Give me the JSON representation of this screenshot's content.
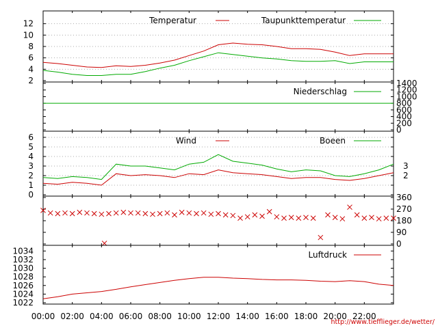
{
  "source_url": "http://www.tiefflieger.de/wetter/",
  "time_axis": {
    "ticks": [
      "00:00",
      "02:00",
      "04:00",
      "06:00",
      "08:00",
      "10:00",
      "12:00",
      "14:00",
      "16:00",
      "18:00",
      "20:00",
      "22:00"
    ],
    "range_hours": [
      0,
      24
    ]
  },
  "colors": {
    "red": "#cc0000",
    "green": "#00aa00",
    "link": "#cc0000"
  },
  "chart_data": [
    {
      "type": "line",
      "panel": "temperature",
      "ylim": [
        2,
        14
      ],
      "y_ticks": [
        "2",
        "4",
        "6",
        "8",
        "10",
        "12"
      ],
      "grid": true,
      "legend_position": "top-right",
      "x": [
        0,
        1,
        2,
        3,
        4,
        5,
        6,
        7,
        8,
        9,
        10,
        11,
        12,
        13,
        14,
        15,
        16,
        17,
        18,
        19,
        20,
        21,
        22,
        23,
        24
      ],
      "series": [
        {
          "name": "Temperatur",
          "color": "red",
          "values": [
            5.2,
            5.0,
            4.7,
            4.4,
            4.3,
            4.6,
            4.5,
            4.7,
            5.1,
            5.6,
            6.4,
            7.2,
            8.3,
            8.6,
            8.4,
            8.3,
            8.0,
            7.6,
            7.6,
            7.5,
            7.0,
            6.4,
            6.7,
            6.7,
            6.7
          ]
        },
        {
          "name": "Taupunkttemperatur",
          "color": "green",
          "values": [
            3.8,
            3.5,
            3.1,
            2.9,
            2.9,
            3.1,
            3.1,
            3.6,
            4.2,
            4.7,
            5.5,
            6.2,
            6.9,
            6.6,
            6.3,
            6.0,
            5.8,
            5.5,
            5.4,
            5.4,
            5.5,
            5.0,
            5.3,
            5.3,
            5.3
          ]
        }
      ]
    },
    {
      "type": "line",
      "panel": "precipitation",
      "ylim": [
        0,
        1400
      ],
      "y_ticks": [
        "0",
        "200",
        "400",
        "600",
        "800",
        "1000",
        "1200",
        "1400"
      ],
      "legend_position": "top-right",
      "x": [
        0,
        24
      ],
      "series": [
        {
          "name": "Niederschlag",
          "color": "green",
          "values": [
            800,
            800
          ]
        }
      ]
    },
    {
      "type": "line",
      "panel": "wind",
      "ylim": [
        0,
        6.5
      ],
      "y_ticks": [
        "0",
        "1",
        "2",
        "3",
        "4",
        "5",
        "6"
      ],
      "right_ticks": [
        "2",
        "3"
      ],
      "grid": true,
      "legend_position": "top-right",
      "x": [
        0,
        1,
        2,
        3,
        4,
        5,
        6,
        7,
        8,
        9,
        10,
        11,
        12,
        13,
        14,
        15,
        16,
        17,
        18,
        19,
        20,
        21,
        22,
        23,
        24
      ],
      "series": [
        {
          "name": "Wind",
          "color": "red",
          "values": [
            1.2,
            1.1,
            1.3,
            1.2,
            1.0,
            2.2,
            2.0,
            2.1,
            2.0,
            1.8,
            2.2,
            2.1,
            2.6,
            2.3,
            2.2,
            2.1,
            1.9,
            1.7,
            1.8,
            1.8,
            1.6,
            1.5,
            1.7,
            2.0,
            2.3
          ]
        },
        {
          "name": "Boeen",
          "color": "green",
          "values": [
            1.8,
            1.7,
            1.9,
            1.8,
            1.6,
            3.2,
            3.0,
            3.0,
            2.8,
            2.6,
            3.2,
            3.4,
            4.2,
            3.5,
            3.3,
            3.1,
            2.7,
            2.4,
            2.6,
            2.5,
            2.0,
            1.9,
            2.2,
            2.6,
            3.2
          ]
        }
      ]
    },
    {
      "type": "scatter",
      "panel": "wind_direction",
      "ylim": [
        0,
        360
      ],
      "right_ticks": [
        "0",
        "90",
        "180",
        "270",
        "360"
      ],
      "marker": "x",
      "color": "red",
      "x": [
        0,
        0.5,
        1,
        1.5,
        2,
        2.5,
        3,
        3.5,
        4,
        4.2,
        4.5,
        5,
        5.5,
        6,
        6.5,
        7,
        7.5,
        8,
        8.5,
        9,
        9.5,
        10,
        10.5,
        11,
        11.5,
        12,
        12.5,
        13,
        13.5,
        14,
        14.5,
        15,
        15.5,
        16,
        16.5,
        17,
        17.5,
        18,
        18.5,
        19,
        19.5,
        20,
        20.5,
        21,
        21.5,
        22,
        22.5,
        23,
        23.5,
        24
      ],
      "values": [
        260,
        240,
        235,
        240,
        235,
        245,
        240,
        235,
        230,
        5,
        235,
        240,
        245,
        240,
        240,
        235,
        230,
        235,
        240,
        225,
        245,
        240,
        235,
        240,
        230,
        235,
        225,
        220,
        200,
        210,
        225,
        215,
        250,
        210,
        200,
        205,
        200,
        205,
        200,
        50,
        225,
        205,
        195,
        285,
        225,
        200,
        205,
        195,
        200,
        200
      ]
    },
    {
      "type": "line",
      "panel": "pressure",
      "ylim": [
        1022,
        1035
      ],
      "y_ticks": [
        "1022",
        "1024",
        "1026",
        "1028",
        "1030",
        "1032",
        "1034"
      ],
      "legend_position": "top-right",
      "x": [
        0,
        1,
        2,
        3,
        4,
        5,
        6,
        7,
        8,
        9,
        10,
        11,
        12,
        13,
        14,
        15,
        16,
        17,
        18,
        19,
        20,
        21,
        22,
        23,
        24
      ],
      "series": [
        {
          "name": "Luftdruck",
          "color": "red",
          "values": [
            1022.9,
            1023.4,
            1024.0,
            1024.3,
            1024.6,
            1025.1,
            1025.7,
            1026.2,
            1026.7,
            1027.2,
            1027.6,
            1027.9,
            1027.9,
            1027.7,
            1027.6,
            1027.4,
            1027.3,
            1027.3,
            1027.2,
            1027.0,
            1026.9,
            1027.1,
            1026.9,
            1026.3,
            1026.0
          ]
        }
      ]
    }
  ]
}
